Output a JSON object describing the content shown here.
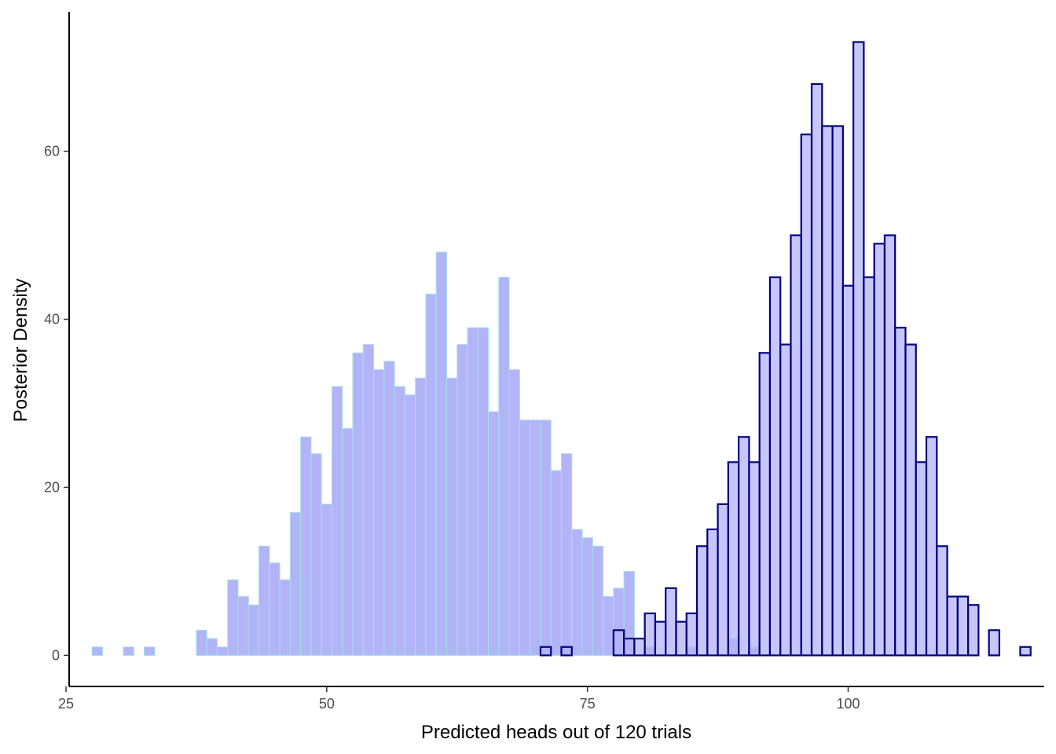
{
  "chart_data": {
    "type": "histogram",
    "xlabel": "Predicted heads out of 120 trials",
    "ylabel": "Posterior Density",
    "xlim": [
      25.3,
      118.8
    ],
    "ylim": [
      -3.7,
      76.6
    ],
    "x_ticks": [
      25,
      50,
      75,
      100
    ],
    "y_ticks": [
      0,
      20,
      40,
      60
    ],
    "grid": false,
    "bin_width": 1,
    "series": [
      {
        "fill": "#b3b3f8",
        "stroke": "#a6e0ea",
        "bins": [
          [
            28,
            1
          ],
          [
            29,
            0
          ],
          [
            30,
            0
          ],
          [
            31,
            1
          ],
          [
            32,
            0
          ],
          [
            33,
            1
          ],
          [
            34,
            0
          ],
          [
            35,
            0
          ],
          [
            36,
            0
          ],
          [
            37,
            0
          ],
          [
            38,
            3
          ],
          [
            39,
            2
          ],
          [
            40,
            1
          ],
          [
            41,
            9
          ],
          [
            42,
            7
          ],
          [
            43,
            6
          ],
          [
            44,
            13
          ],
          [
            45,
            11
          ],
          [
            46,
            9
          ],
          [
            47,
            17
          ],
          [
            48,
            26
          ],
          [
            49,
            24
          ],
          [
            50,
            18
          ],
          [
            51,
            32
          ],
          [
            52,
            27
          ],
          [
            53,
            36
          ],
          [
            54,
            37
          ],
          [
            55,
            34
          ],
          [
            56,
            35
          ],
          [
            57,
            32
          ],
          [
            58,
            31
          ],
          [
            59,
            33
          ],
          [
            60,
            43
          ],
          [
            61,
            48
          ],
          [
            62,
            33
          ],
          [
            63,
            37
          ],
          [
            64,
            39
          ],
          [
            65,
            39
          ],
          [
            66,
            29
          ],
          [
            67,
            45
          ],
          [
            68,
            34
          ],
          [
            69,
            28
          ],
          [
            70,
            28
          ],
          [
            71,
            28
          ],
          [
            72,
            22
          ],
          [
            73,
            24
          ],
          [
            74,
            15
          ],
          [
            75,
            14
          ],
          [
            76,
            13
          ],
          [
            77,
            7
          ],
          [
            78,
            8
          ],
          [
            79,
            10
          ],
          [
            80,
            0
          ],
          [
            81,
            1
          ],
          [
            82,
            0
          ],
          [
            83,
            0
          ],
          [
            84,
            0
          ],
          [
            85,
            1
          ],
          [
            86,
            0
          ],
          [
            87,
            0
          ],
          [
            88,
            0
          ],
          [
            89,
            2
          ],
          [
            90,
            0
          ],
          [
            91,
            1
          ],
          [
            92,
            0
          ]
        ]
      },
      {
        "fill": "#b3b3f8",
        "stroke": "#000080",
        "bins": [
          [
            71,
            1
          ],
          [
            72,
            0
          ],
          [
            73,
            1
          ],
          [
            74,
            0
          ],
          [
            75,
            0
          ],
          [
            76,
            0
          ],
          [
            77,
            0
          ],
          [
            78,
            3
          ],
          [
            79,
            2
          ],
          [
            80,
            2
          ],
          [
            81,
            5
          ],
          [
            82,
            4
          ],
          [
            83,
            8
          ],
          [
            84,
            4
          ],
          [
            85,
            5
          ],
          [
            86,
            13
          ],
          [
            87,
            15
          ],
          [
            88,
            18
          ],
          [
            89,
            23
          ],
          [
            90,
            26
          ],
          [
            91,
            23
          ],
          [
            92,
            36
          ],
          [
            93,
            45
          ],
          [
            94,
            37
          ],
          [
            95,
            50
          ],
          [
            96,
            62
          ],
          [
            97,
            68
          ],
          [
            98,
            63
          ],
          [
            99,
            63
          ],
          [
            100,
            44
          ],
          [
            101,
            73
          ],
          [
            102,
            45
          ],
          [
            103,
            49
          ],
          [
            104,
            50
          ],
          [
            105,
            39
          ],
          [
            106,
            37
          ],
          [
            107,
            23
          ],
          [
            108,
            26
          ],
          [
            109,
            13
          ],
          [
            110,
            7
          ],
          [
            111,
            7
          ],
          [
            112,
            6
          ],
          [
            113,
            0
          ],
          [
            114,
            3
          ],
          [
            115,
            0
          ],
          [
            116,
            0
          ],
          [
            117,
            1
          ]
        ]
      }
    ]
  }
}
